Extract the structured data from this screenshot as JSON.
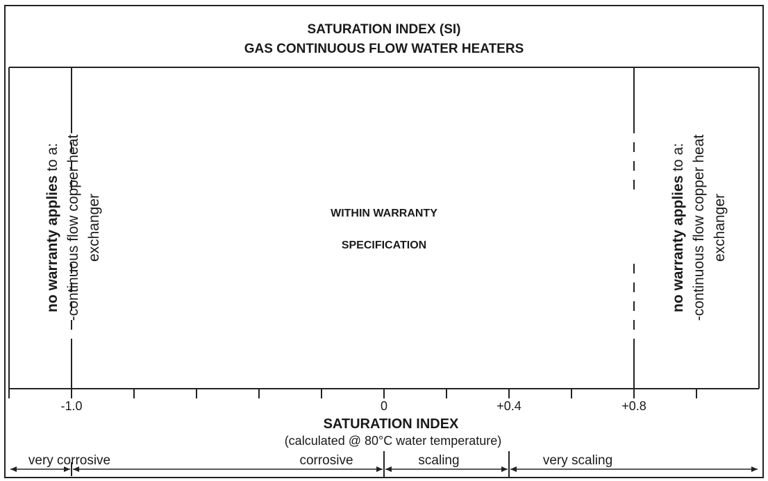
{
  "title": {
    "line1": "SATURATION INDEX (SI)",
    "line2": "GAS CONTINUOUS FLOW WATER HEATERS"
  },
  "center": {
    "line1": "WITHIN WARRANTY",
    "line2": "SPECIFICATION"
  },
  "left_note": {
    "bold": "no warranty applies",
    "rest": " to a:",
    "line2": "-continuous flow copper heat",
    "line3": "exchanger"
  },
  "right_note": {
    "bold": "no warranty applies",
    "rest": " to a:",
    "line2": "-continuous flow copper heat",
    "line3": "exchanger"
  },
  "axis": {
    "title": "SATURATION INDEX",
    "subtitle": "(calculated @ 80°C water temperature)",
    "min": -1.2,
    "max": 1.2,
    "ticks": [
      -1.2,
      -1.0,
      -0.8,
      -0.6,
      -0.4,
      -0.2,
      0,
      0.2,
      0.4,
      0.6,
      0.8,
      1.0
    ],
    "tick_labels": [
      {
        "value": -1.0,
        "text": "-1.0"
      },
      {
        "value": 0,
        "text": "0"
      },
      {
        "value": 0.4,
        "text": "+0.4"
      },
      {
        "value": 0.8,
        "text": "+0.8"
      }
    ],
    "warranty_limits": [
      -1.0,
      0.8
    ]
  },
  "ranges": [
    {
      "from": -1.2,
      "to": -1.0,
      "label": "very corrosive"
    },
    {
      "from": -1.0,
      "to": 0,
      "label": "corrosive"
    },
    {
      "from": 0,
      "to": 0.4,
      "label": "scaling"
    },
    {
      "from": 0.4,
      "to": 1.2,
      "label": "very scaling"
    }
  ]
}
